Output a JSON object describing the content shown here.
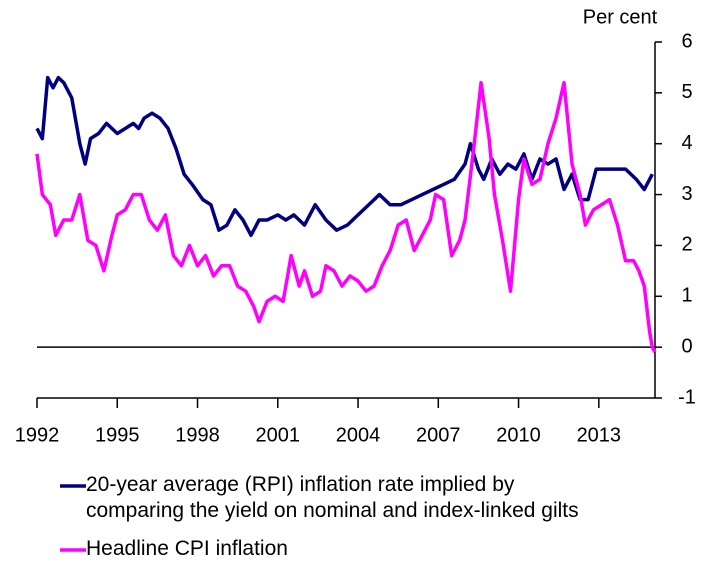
{
  "chart_data": {
    "type": "line",
    "y_axis_label": "Per cent",
    "xlim": [
      1992,
      2015.1
    ],
    "xticks": [
      1992,
      1995,
      1998,
      2001,
      2004,
      2007,
      2010,
      2013
    ],
    "ylim": [
      -1,
      6
    ],
    "yticks": [
      -1,
      0,
      1,
      2,
      3,
      4,
      5,
      6
    ],
    "y_axis_side": "right",
    "zero_line": true,
    "series": [
      {
        "name": "20-year average (RPI) inflation rate implied by\ncomparing the yield on nominal and index-linked gilts",
        "color": "#000080",
        "x": [
          1992.0,
          1992.2,
          1992.4,
          1992.6,
          1992.8,
          1993.0,
          1993.3,
          1993.6,
          1993.8,
          1994.0,
          1994.3,
          1994.6,
          1995.0,
          1995.3,
          1995.6,
          1995.8,
          1996.0,
          1996.3,
          1996.6,
          1996.9,
          1997.2,
          1997.5,
          1997.8,
          1998.2,
          1998.5,
          1998.8,
          1999.1,
          1999.4,
          1999.7,
          2000.0,
          2000.3,
          2000.6,
          2001.0,
          2001.3,
          2001.6,
          2002.0,
          2002.4,
          2002.8,
          2003.2,
          2003.6,
          2004.0,
          2004.4,
          2004.8,
          2005.2,
          2005.6,
          2006.0,
          2006.4,
          2006.8,
          2007.2,
          2007.6,
          2008.0,
          2008.2,
          2008.5,
          2008.7,
          2009.0,
          2009.3,
          2009.6,
          2009.9,
          2010.2,
          2010.5,
          2010.8,
          2011.1,
          2011.4,
          2011.7,
          2012.0,
          2012.3,
          2012.6,
          2012.9,
          2013.2,
          2013.6,
          2014.0,
          2014.4,
          2014.7,
          2015.0
        ],
        "values": [
          4.3,
          4.1,
          5.3,
          5.1,
          5.3,
          5.2,
          4.9,
          4.0,
          3.6,
          4.1,
          4.2,
          4.4,
          4.2,
          4.3,
          4.4,
          4.3,
          4.5,
          4.6,
          4.5,
          4.3,
          3.9,
          3.4,
          3.2,
          2.9,
          2.8,
          2.3,
          2.4,
          2.7,
          2.5,
          2.2,
          2.5,
          2.5,
          2.6,
          2.5,
          2.6,
          2.4,
          2.8,
          2.5,
          2.3,
          2.4,
          2.6,
          2.8,
          3.0,
          2.8,
          2.8,
          2.9,
          3.0,
          3.1,
          3.2,
          3.3,
          3.6,
          4.0,
          3.5,
          3.3,
          3.7,
          3.4,
          3.6,
          3.5,
          3.8,
          3.3,
          3.7,
          3.6,
          3.7,
          3.1,
          3.4,
          2.9,
          2.9,
          3.5,
          3.5,
          3.5,
          3.5,
          3.3,
          3.1,
          3.4
        ]
      },
      {
        "name": "Headline CPI inflation",
        "color": "#ff00ff",
        "x": [
          1992.0,
          1992.2,
          1992.5,
          1992.7,
          1993.0,
          1993.3,
          1993.6,
          1993.9,
          1994.2,
          1994.5,
          1994.8,
          1995.0,
          1995.3,
          1995.6,
          1995.9,
          1996.2,
          1996.5,
          1996.8,
          1997.1,
          1997.4,
          1997.7,
          1998.0,
          1998.3,
          1998.6,
          1998.9,
          1999.2,
          1999.5,
          1999.8,
          2000.1,
          2000.3,
          2000.6,
          2000.9,
          2001.2,
          2001.5,
          2001.8,
          2002.0,
          2002.3,
          2002.6,
          2002.8,
          2003.1,
          2003.4,
          2003.7,
          2004.0,
          2004.3,
          2004.6,
          2004.9,
          2005.2,
          2005.5,
          2005.8,
          2006.1,
          2006.4,
          2006.7,
          2006.9,
          2007.2,
          2007.5,
          2007.8,
          2008.0,
          2008.3,
          2008.6,
          2008.9,
          2009.1,
          2009.4,
          2009.7,
          2010.0,
          2010.2,
          2010.5,
          2010.8,
          2011.1,
          2011.4,
          2011.7,
          2012.0,
          2012.3,
          2012.5,
          2012.8,
          2013.1,
          2013.4,
          2013.7,
          2014.0,
          2014.3,
          2014.5,
          2014.7,
          2014.9,
          2015.0,
          2015.1
        ],
        "values": [
          3.8,
          3.0,
          2.8,
          2.2,
          2.5,
          2.5,
          3.0,
          2.1,
          2.0,
          1.5,
          2.2,
          2.6,
          2.7,
          3.0,
          3.0,
          2.5,
          2.3,
          2.6,
          1.8,
          1.6,
          2.0,
          1.6,
          1.8,
          1.4,
          1.6,
          1.6,
          1.2,
          1.1,
          0.8,
          0.5,
          0.9,
          1.0,
          0.9,
          1.8,
          1.2,
          1.5,
          1.0,
          1.1,
          1.6,
          1.5,
          1.2,
          1.4,
          1.3,
          1.1,
          1.2,
          1.6,
          1.9,
          2.4,
          2.5,
          1.9,
          2.2,
          2.5,
          3.0,
          2.9,
          1.8,
          2.1,
          2.5,
          3.8,
          5.2,
          4.1,
          3.0,
          2.1,
          1.1,
          2.9,
          3.7,
          3.2,
          3.3,
          4.0,
          4.5,
          5.2,
          3.6,
          3.0,
          2.4,
          2.7,
          2.8,
          2.9,
          2.4,
          1.7,
          1.7,
          1.5,
          1.2,
          0.3,
          0.0,
          -0.1
        ]
      }
    ]
  }
}
